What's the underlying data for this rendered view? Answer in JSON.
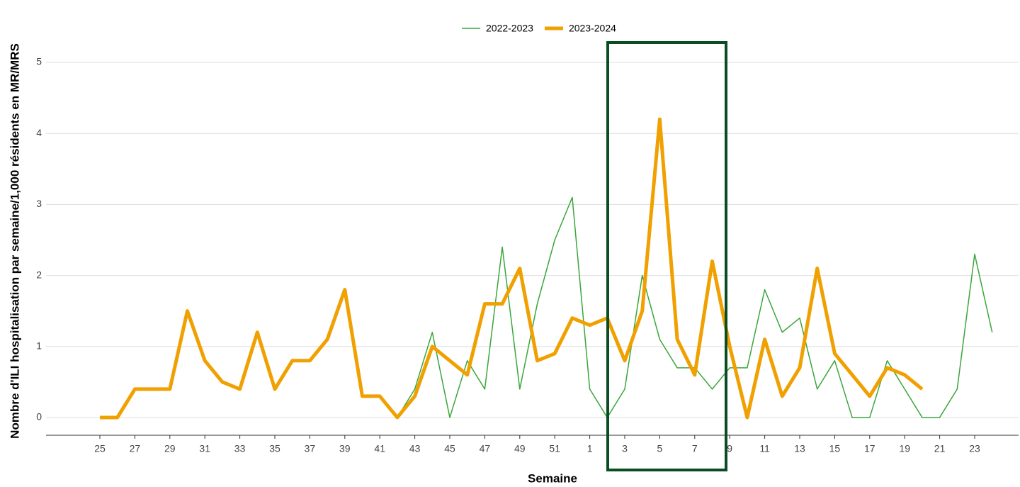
{
  "chart_data": {
    "type": "line",
    "x_label": "Semaine",
    "y_label": "Nombre d'ILI hospitalisation par semaine/1,000 résidents en MR/MRS",
    "categories": [
      "25",
      null,
      "27",
      null,
      "29",
      null,
      "31",
      null,
      "33",
      null,
      "35",
      null,
      "37",
      null,
      "39",
      null,
      "41",
      null,
      "43",
      null,
      "45",
      null,
      "47",
      null,
      "49",
      null,
      "51",
      null,
      "1",
      null,
      "3",
      null,
      "5",
      null,
      "7",
      null,
      "9",
      null,
      "11",
      null,
      "13",
      null,
      "15",
      null,
      "17",
      null,
      "19",
      null,
      "21",
      null,
      "23",
      null
    ],
    "series": [
      {
        "name": "2022-2023",
        "color": "#3aa63a",
        "values": [
          null,
          null,
          null,
          null,
          null,
          null,
          null,
          null,
          null,
          null,
          null,
          null,
          null,
          null,
          null,
          null,
          null,
          0,
          0.4,
          1.2,
          0,
          0.8,
          0.4,
          2.4,
          0.4,
          1.6,
          2.5,
          3.1,
          0.4,
          0,
          0.4,
          2.0,
          1.1,
          0.7,
          0.7,
          0.4,
          0.7,
          0.7,
          1.8,
          1.2,
          1.4,
          0.4,
          0.8,
          0,
          0,
          0.8,
          0.4,
          0,
          0,
          0.4,
          2.3,
          1.2
        ]
      },
      {
        "name": "2023-2024",
        "color": "#f0a000",
        "values": [
          0,
          0,
          0.4,
          0.4,
          0.4,
          1.5,
          0.8,
          0.5,
          0.4,
          1.2,
          0.4,
          0.8,
          0.8,
          1.1,
          1.8,
          0.3,
          0.3,
          0,
          0.3,
          1.0,
          0.8,
          0.6,
          1.6,
          1.6,
          2.1,
          0.8,
          0.9,
          1.4,
          1.3,
          1.4,
          0.8,
          1.5,
          4.2,
          1.1,
          0.6,
          2.2,
          1.0,
          0,
          1.1,
          0.3,
          0.7,
          2.1,
          0.9,
          0.6,
          0.3,
          0.7,
          0.6,
          0.4,
          null,
          null,
          null,
          null
        ]
      }
    ],
    "ylim": [
      -0.25,
      5.25
    ],
    "yticks": [
      0,
      1,
      2,
      3,
      4,
      5
    ],
    "grid": true
  }
}
